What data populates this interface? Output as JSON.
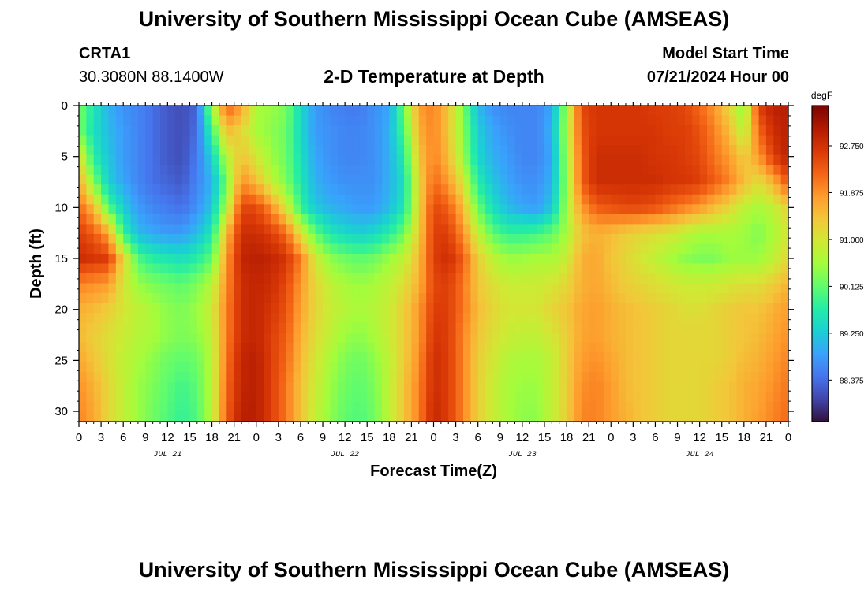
{
  "header": {
    "title": "University of Southern Mississippi Ocean Cube (AMSEAS)",
    "station": "CRTA1",
    "coords": "30.3080N  88.1400W",
    "plot_title": "2-D Temperature at Depth",
    "model_start_label": "Model Start Time",
    "model_start_value": "07/21/2024 Hour 00"
  },
  "footer": {
    "title": "University of Southern Mississippi Ocean Cube (AMSEAS)"
  },
  "colors": {
    "colormap": [
      "#30123b",
      "#4145ab",
      "#4675ed",
      "#39a2fc",
      "#1bcfd4",
      "#24eca6",
      "#61fc6c",
      "#a4fc3b",
      "#d1e834",
      "#f3c63a",
      "#fe9b2d",
      "#f36315",
      "#d93806",
      "#b11901",
      "#7a0402"
    ]
  },
  "chart_data": {
    "type": "heatmap",
    "title": "2-D Temperature at Depth",
    "xlabel": "Forecast Time(Z)",
    "ylabel": "Depth (ft)",
    "x_unit": "hours since 07/21/2024 00Z",
    "xlim": [
      0,
      96
    ],
    "ylim": [
      0,
      31
    ],
    "y_inverted": true,
    "x_tick_values": [
      0,
      3,
      6,
      9,
      12,
      15,
      18,
      21,
      24,
      27,
      30,
      33,
      36,
      39,
      42,
      45,
      48,
      51,
      54,
      57,
      60,
      63,
      66,
      69,
      72,
      75,
      78,
      81,
      84,
      87,
      90,
      93,
      96
    ],
    "x_tick_labels": [
      "0",
      "3",
      "6",
      "9",
      "12",
      "15",
      "18",
      "21",
      "0",
      "3",
      "6",
      "9",
      "12",
      "15",
      "18",
      "21",
      "0",
      "3",
      "6",
      "9",
      "12",
      "15",
      "18",
      "21",
      "0",
      "3",
      "6",
      "9",
      "12",
      "15",
      "18",
      "21",
      "0"
    ],
    "date_labels": [
      {
        "x": 12,
        "label": "JUL 21"
      },
      {
        "x": 36,
        "label": "JUL 22"
      },
      {
        "x": 60,
        "label": "JUL 23"
      },
      {
        "x": 84,
        "label": "JUL 24"
      }
    ],
    "y_tick_values": [
      0,
      5,
      10,
      15,
      20,
      25,
      30
    ],
    "y_tick_labels": [
      "0",
      "5",
      "10",
      "15",
      "20",
      "25",
      "30"
    ],
    "colorbar": {
      "unit": "degF",
      "range": [
        87.6,
        93.5
      ],
      "tick_values": [
        92.75,
        91.875,
        91.0,
        90.125,
        89.25,
        88.375
      ],
      "tick_labels": [
        "92.750",
        "91.875",
        "91.000",
        "90.125",
        "89.250",
        "88.375"
      ]
    },
    "depths_ft": [
      0,
      2.5,
      5,
      7.5,
      10,
      12.5,
      15,
      17.5,
      20,
      22.5,
      25,
      27.5,
      31
    ],
    "hours": [
      0,
      2,
      4,
      6,
      8,
      10,
      12,
      14,
      16,
      18,
      20,
      22,
      24,
      26,
      28,
      30,
      32,
      34,
      36,
      38,
      40,
      42,
      44,
      46,
      48,
      50,
      52,
      54,
      56,
      58,
      60,
      62,
      64,
      66,
      68,
      70,
      72,
      74,
      76,
      78,
      80,
      82,
      84,
      86,
      88,
      90,
      92,
      94,
      96
    ],
    "values_degF": [
      [
        90.3,
        89.6,
        89.0,
        88.7,
        88.6,
        88.4,
        88.2,
        88.1,
        88.3,
        90.5,
        92.3,
        91.8,
        90.6,
        90.5,
        90.3,
        89.4,
        88.8,
        88.6,
        88.5,
        88.5,
        88.7,
        88.9,
        90.2,
        91.8,
        92.0,
        91.4,
        90.3,
        89.1,
        88.7,
        88.6,
        88.6,
        88.6,
        88.9,
        90.6,
        92.5,
        92.7,
        92.7,
        92.7,
        92.7,
        92.6,
        92.6,
        92.5,
        92.2,
        91.8,
        91.2,
        90.3,
        92.6,
        93.0,
        93.0
      ],
      [
        90.3,
        89.5,
        89.1,
        88.8,
        88.6,
        88.4,
        88.2,
        88.1,
        88.4,
        89.8,
        91.5,
        91.2,
        90.6,
        90.4,
        90.2,
        89.4,
        88.8,
        88.7,
        88.6,
        88.6,
        88.7,
        89.0,
        90.0,
        91.6,
        92.0,
        91.4,
        90.4,
        89.3,
        88.9,
        88.7,
        88.6,
        88.6,
        89.0,
        90.7,
        92.4,
        92.7,
        92.7,
        92.7,
        92.7,
        92.7,
        92.6,
        92.6,
        92.4,
        92.0,
        91.5,
        90.7,
        92.2,
        92.8,
        93.0
      ],
      [
        91.2,
        89.7,
        89.2,
        88.8,
        88.6,
        88.4,
        88.2,
        88.1,
        88.5,
        89.3,
        90.7,
        91.4,
        91.0,
        90.5,
        90.2,
        89.5,
        88.9,
        88.7,
        88.6,
        88.6,
        88.7,
        89.0,
        89.7,
        91.4,
        92.0,
        91.5,
        90.5,
        89.4,
        89.0,
        88.8,
        88.6,
        88.6,
        88.9,
        90.6,
        92.3,
        92.8,
        92.8,
        92.8,
        92.8,
        92.7,
        92.7,
        92.6,
        92.5,
        92.1,
        91.8,
        91.3,
        91.8,
        92.6,
        93.0
      ],
      [
        91.7,
        90.3,
        89.3,
        88.9,
        88.6,
        88.4,
        88.3,
        88.2,
        88.6,
        89.0,
        90.2,
        91.9,
        91.5,
        90.8,
        90.3,
        89.6,
        89.0,
        88.8,
        88.7,
        88.7,
        88.7,
        89.0,
        89.5,
        91.2,
        92.2,
        91.8,
        91.0,
        89.7,
        89.2,
        88.9,
        88.7,
        88.7,
        89.0,
        90.5,
        92.3,
        92.8,
        92.8,
        92.8,
        92.8,
        92.8,
        92.7,
        92.7,
        92.6,
        92.3,
        92.0,
        91.5,
        91.1,
        91.6,
        92.4
      ],
      [
        92.2,
        91.5,
        90.0,
        89.3,
        88.8,
        88.6,
        88.5,
        88.4,
        88.7,
        89.2,
        90.6,
        92.5,
        92.5,
        91.9,
        91.0,
        89.8,
        89.2,
        89.0,
        88.9,
        88.8,
        88.8,
        89.1,
        89.6,
        91.2,
        92.5,
        92.3,
        91.5,
        90.2,
        89.5,
        89.1,
        88.9,
        88.8,
        89.2,
        90.6,
        91.8,
        92.3,
        92.4,
        92.5,
        92.5,
        92.4,
        92.2,
        92.0,
        91.8,
        91.5,
        91.2,
        90.8,
        90.6,
        90.8,
        91.3
      ],
      [
        92.6,
        92.3,
        91.7,
        89.8,
        89.1,
        88.9,
        88.8,
        88.8,
        89.1,
        89.6,
        91.5,
        92.8,
        92.8,
        92.6,
        92.2,
        91.0,
        90.1,
        89.6,
        89.4,
        89.3,
        89.4,
        89.7,
        90.2,
        91.3,
        92.6,
        92.6,
        91.9,
        90.8,
        90.1,
        89.8,
        89.8,
        89.9,
        90.1,
        90.6,
        91.4,
        91.6,
        91.5,
        91.3,
        91.2,
        91.1,
        91.0,
        90.8,
        90.6,
        90.6,
        90.6,
        90.5,
        90.3,
        90.6,
        91.0
      ],
      [
        92.8,
        92.7,
        92.6,
        91.2,
        90.0,
        89.7,
        89.6,
        89.5,
        89.7,
        90.1,
        91.8,
        92.9,
        93.0,
        92.9,
        92.7,
        92.0,
        90.9,
        90.4,
        90.2,
        90.1,
        90.2,
        90.5,
        90.8,
        91.5,
        92.6,
        92.8,
        92.3,
        91.3,
        90.8,
        90.5,
        90.5,
        90.6,
        90.6,
        90.9,
        91.6,
        91.7,
        91.4,
        91.2,
        91.0,
        90.8,
        90.6,
        90.4,
        90.3,
        90.3,
        90.5,
        90.5,
        90.5,
        90.8,
        91.2
      ],
      [
        92.0,
        91.9,
        91.8,
        91.0,
        90.5,
        90.3,
        90.2,
        90.1,
        90.3,
        90.7,
        91.9,
        92.8,
        92.9,
        92.8,
        92.5,
        91.8,
        91.2,
        90.8,
        90.6,
        90.5,
        90.6,
        90.8,
        91.1,
        91.6,
        92.5,
        92.6,
        92.1,
        91.4,
        91.1,
        90.9,
        90.9,
        90.9,
        91.0,
        91.2,
        91.6,
        91.7,
        91.5,
        91.3,
        91.2,
        91.1,
        91.0,
        90.9,
        90.9,
        90.9,
        91.0,
        91.1,
        91.1,
        91.3,
        91.6
      ],
      [
        91.6,
        91.5,
        91.3,
        91.0,
        90.8,
        90.6,
        90.4,
        90.3,
        90.5,
        90.9,
        92.0,
        92.8,
        92.9,
        92.7,
        92.4,
        91.7,
        91.2,
        90.9,
        90.7,
        90.6,
        90.7,
        90.9,
        91.3,
        91.8,
        92.6,
        92.6,
        92.1,
        91.5,
        91.2,
        91.0,
        91.0,
        91.0,
        91.2,
        91.4,
        91.7,
        91.8,
        91.6,
        91.5,
        91.4,
        91.3,
        91.2,
        91.1,
        91.1,
        91.2,
        91.3,
        91.4,
        91.4,
        91.6,
        91.8
      ],
      [
        91.5,
        91.3,
        91.1,
        90.9,
        90.7,
        90.6,
        90.4,
        90.3,
        90.4,
        90.8,
        92.0,
        92.8,
        92.9,
        92.6,
        92.3,
        91.6,
        91.1,
        90.8,
        90.5,
        90.4,
        90.6,
        90.9,
        91.3,
        91.8,
        92.7,
        92.6,
        92.0,
        91.4,
        91.1,
        90.9,
        90.8,
        90.8,
        91.0,
        91.3,
        91.7,
        91.8,
        91.6,
        91.5,
        91.4,
        91.3,
        91.2,
        91.2,
        91.2,
        91.2,
        91.3,
        91.4,
        91.5,
        91.7,
        91.9
      ],
      [
        91.7,
        91.4,
        91.1,
        90.8,
        90.6,
        90.4,
        90.2,
        90.1,
        90.2,
        90.7,
        92.1,
        92.9,
        93.0,
        92.6,
        92.2,
        91.5,
        91.0,
        90.6,
        90.3,
        90.2,
        90.4,
        90.8,
        91.3,
        91.9,
        92.8,
        92.6,
        92.0,
        91.3,
        91.0,
        90.7,
        90.6,
        90.6,
        90.8,
        91.3,
        91.8,
        91.9,
        91.7,
        91.5,
        91.4,
        91.3,
        91.2,
        91.2,
        91.2,
        91.2,
        91.3,
        91.5,
        91.6,
        91.8,
        92.0
      ],
      [
        91.9,
        91.6,
        91.2,
        90.8,
        90.5,
        90.3,
        90.1,
        89.9,
        90.1,
        90.7,
        92.2,
        92.9,
        93.0,
        92.6,
        92.1,
        91.4,
        90.9,
        90.5,
        90.2,
        90.1,
        90.3,
        90.8,
        91.4,
        92.0,
        92.8,
        92.6,
        92.0,
        91.3,
        90.9,
        90.6,
        90.5,
        90.5,
        90.8,
        91.3,
        91.9,
        92.0,
        91.8,
        91.5,
        91.4,
        91.3,
        91.2,
        91.2,
        91.2,
        91.3,
        91.4,
        91.6,
        91.7,
        91.9,
        92.1
      ],
      [
        92.0,
        91.7,
        91.2,
        90.8,
        90.5,
        90.2,
        90.0,
        89.8,
        90.0,
        90.7,
        92.3,
        93.0,
        93.0,
        92.6,
        92.1,
        91.4,
        90.8,
        90.4,
        90.1,
        90.0,
        90.2,
        90.8,
        91.4,
        92.0,
        92.9,
        92.6,
        92.0,
        91.3,
        90.9,
        90.6,
        90.4,
        90.4,
        90.8,
        91.3,
        92.0,
        92.0,
        91.8,
        91.6,
        91.4,
        91.3,
        91.2,
        91.2,
        91.2,
        91.3,
        91.4,
        91.6,
        91.8,
        92.0,
        92.2
      ]
    ]
  }
}
